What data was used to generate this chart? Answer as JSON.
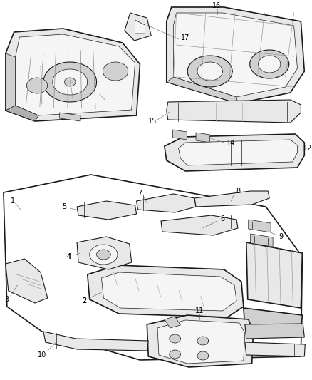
{
  "bg_color": "#ffffff",
  "line_color": "#1a1a1a",
  "fig_width": 4.38,
  "fig_height": 5.33,
  "dpi": 100,
  "label_fontsize": 7.0,
  "lw_main": 1.2,
  "lw_med": 0.8,
  "lw_thin": 0.5,
  "lw_leader": 0.4,
  "gray_light": "#e8e8e8",
  "gray_mid": "#d0d0d0",
  "gray_dark": "#b0b0b0",
  "white_fill": "#f5f5f5"
}
